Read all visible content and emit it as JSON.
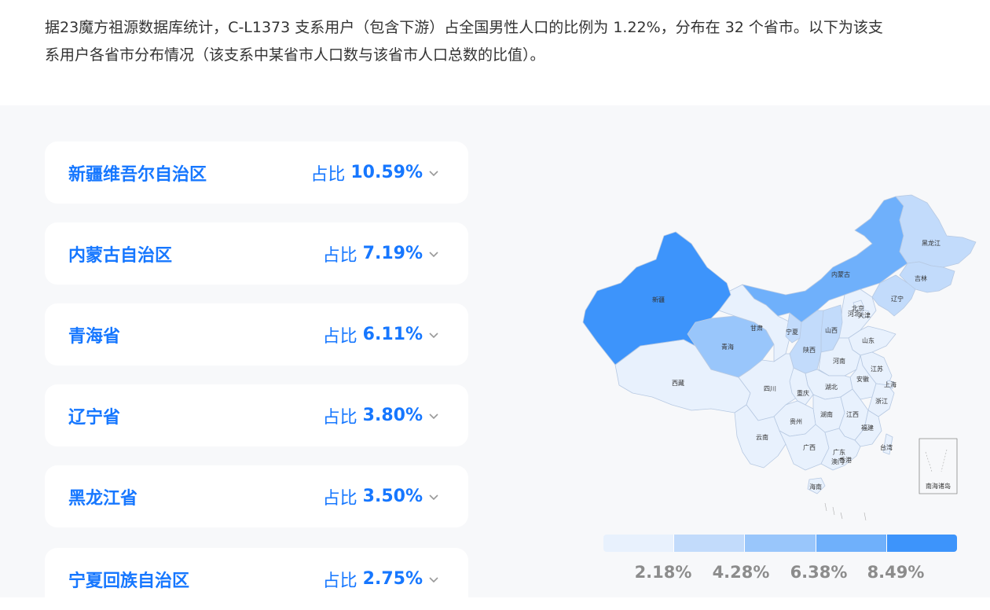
{
  "intro": "据23魔方祖源数据库统计，C-L1373 支系用户（包含下游）占全国男性人口的比例为 1.22%，分布在 32 个省市。以下为该支系用户各省市分布情况（该支系中某省市人口数与该省市人口总数的比值）。",
  "cards": [
    {
      "name": "新疆维吾尔自治区",
      "prefix": "占比",
      "value": "10.59%"
    },
    {
      "name": "内蒙古自治区",
      "prefix": "占比",
      "value": "7.19%"
    },
    {
      "name": "青海省",
      "prefix": "占比",
      "value": "6.11%"
    },
    {
      "name": "辽宁省",
      "prefix": "占比",
      "value": "3.80%"
    },
    {
      "name": "黑龙江省",
      "prefix": "占比",
      "value": "3.50%"
    },
    {
      "name": "宁夏回族自治区",
      "prefix": "占比",
      "value": "2.75%"
    }
  ],
  "map": {
    "labels": {
      "xinjiang": "新疆",
      "xizang": "西藏",
      "qinghai": "青海",
      "gansu": "甘肃",
      "neimenggu": "内蒙古",
      "heilongjiang": "黑龙江",
      "jilin": "吉林",
      "liaoning": "辽宁",
      "beijing": "北京",
      "tianjin": "天津",
      "hebei": "河北",
      "shanxi": "山西",
      "shaanxi": "陕西",
      "ningxia": "宁夏",
      "shandong": "山东",
      "henan": "河南",
      "jiangsu": "江苏",
      "anhui": "安徽",
      "shanghai": "上海",
      "zhejiang": "浙江",
      "hubei": "湖北",
      "sichuan": "四川",
      "chongqing": "重庆",
      "hunan": "湖南",
      "jiangxi": "江西",
      "fujian": "福建",
      "guizhou": "贵州",
      "yunnan": "云南",
      "guangxi": "广西",
      "guangdong": "广东",
      "hongkong": "香港",
      "macau": "澳门",
      "taiwan": "台湾",
      "hainan": "海南",
      "nanhai": "南海诸岛"
    }
  },
  "legend": {
    "labels": [
      "2.18%",
      "4.28%",
      "6.38%",
      "8.49%"
    ],
    "colors": [
      "#e8f1fd",
      "#c2dbfb",
      "#99c6fb",
      "#6fb0fb",
      "#3d94fb"
    ]
  },
  "colors": {
    "accent": "#1677ff",
    "panel_bg": "#f7f8fa",
    "card_bg": "#ffffff",
    "border": "#c9d9ee"
  }
}
